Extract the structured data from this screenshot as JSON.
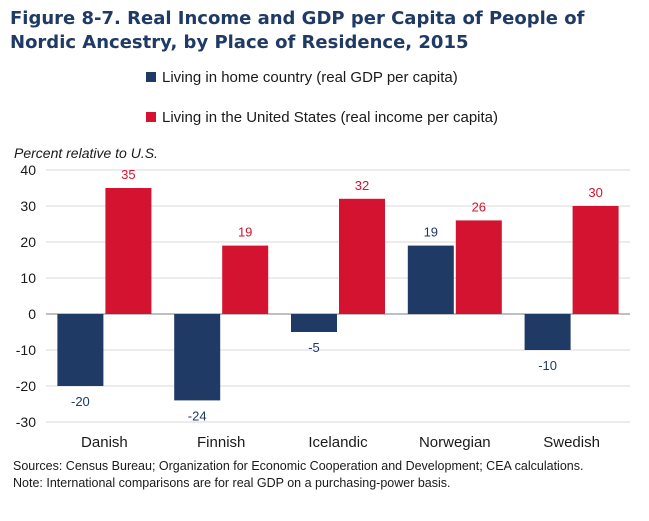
{
  "title": "Figure 8-7. Real Income and GDP per Capita of People of Nordic Ancestry, by Place of Residence, 2015",
  "chart_data": {
    "type": "bar",
    "ylabel": "Percent relative to U.S.",
    "ylim": [
      -30,
      40
    ],
    "yticks": [
      40,
      30,
      20,
      10,
      0,
      -10,
      -20,
      -30
    ],
    "categories": [
      "Danish",
      "Finnish",
      "Icelandic",
      "Norwegian",
      "Swedish"
    ],
    "series": [
      {
        "name": "Living in home country (real GDP per capita)",
        "color": "#1f3a64",
        "values": [
          -20,
          -24,
          -5,
          19,
          -10
        ]
      },
      {
        "name": "Living in the United States (real income per capita)",
        "color": "#d3132f",
        "values": [
          35,
          19,
          32,
          26,
          30
        ]
      }
    ],
    "legend": "top",
    "grid": true
  },
  "sources": "Sources: Census Bureau; Organization for Economic Cooperation and Development; CEA calculations.",
  "note": "Note: International comparisons are for real GDP on a purchasing-power basis."
}
